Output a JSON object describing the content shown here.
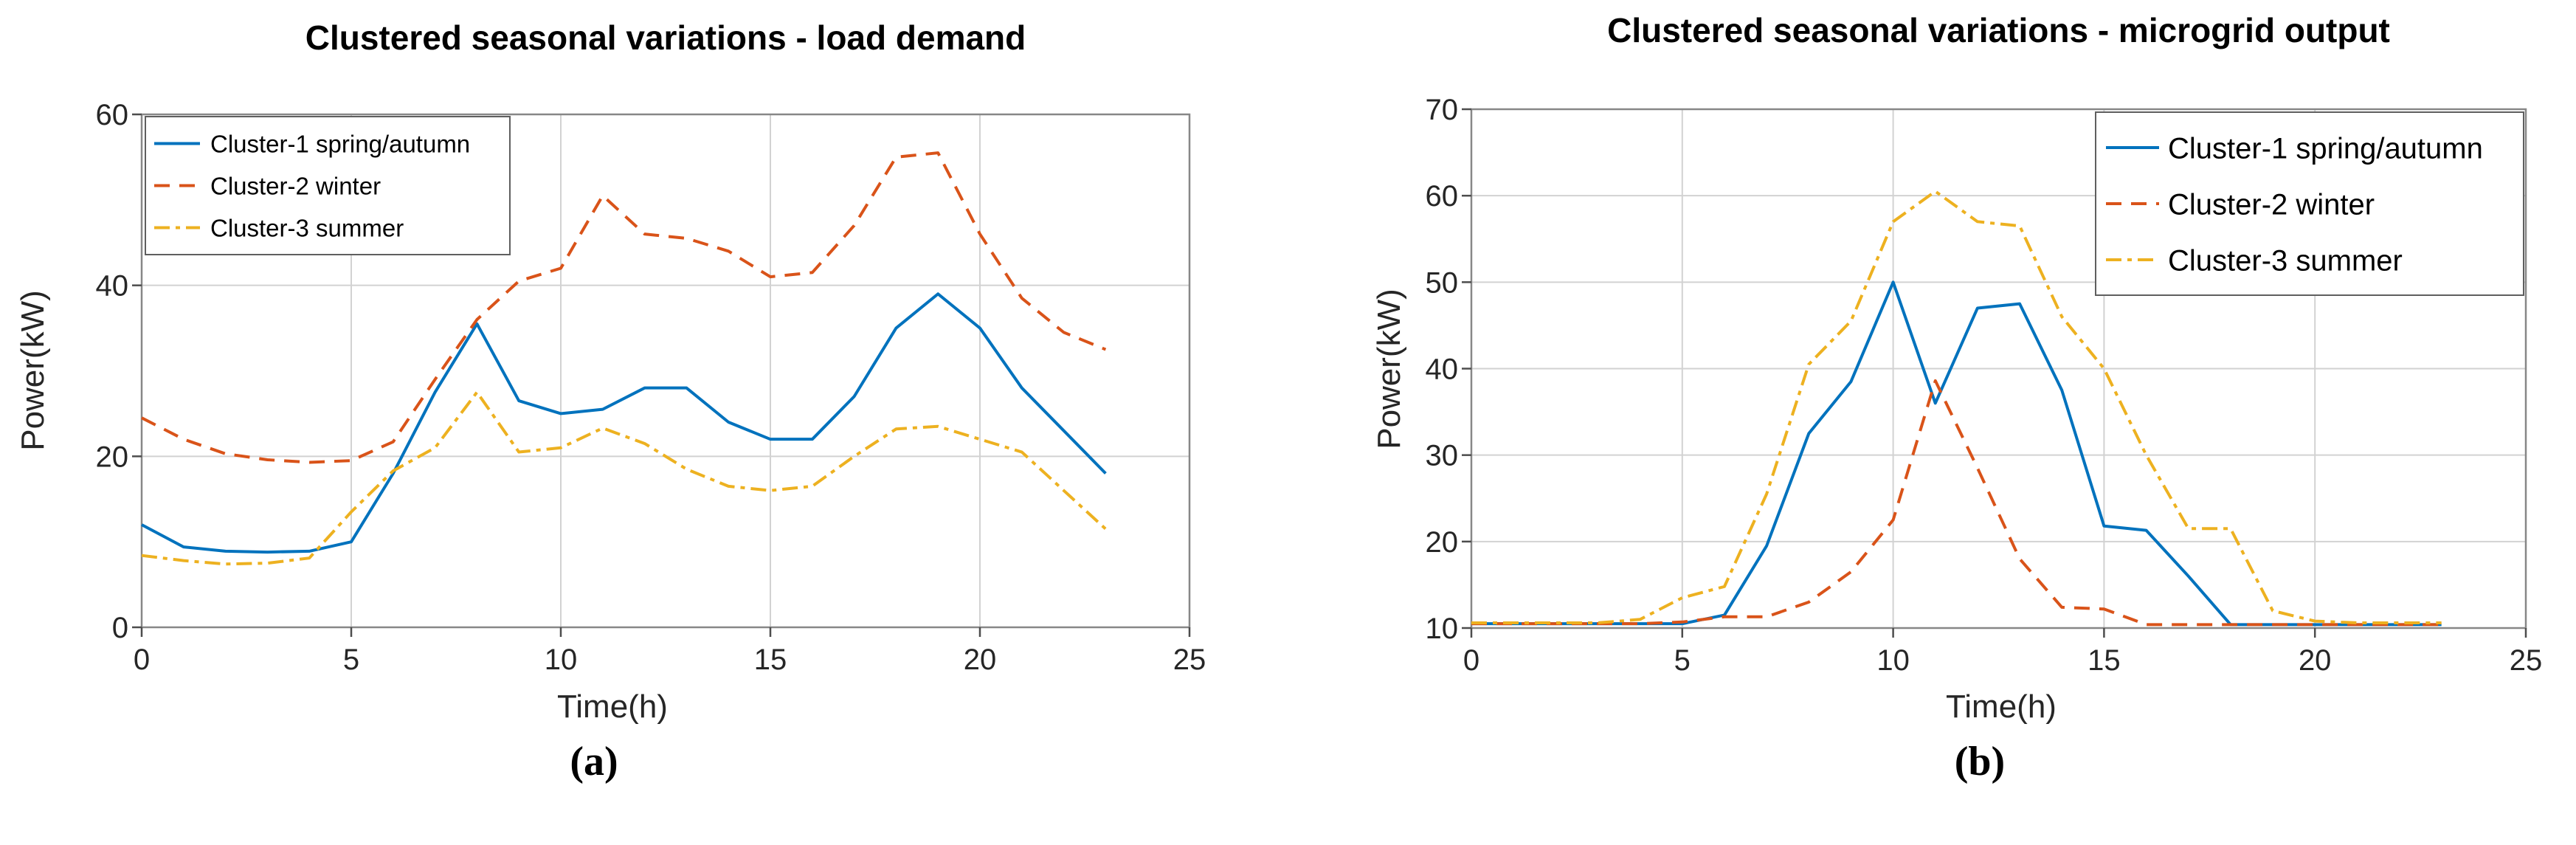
{
  "figure": {
    "background": "#ffffff",
    "text_color": "#262626",
    "grid_color": "#d2d2d2",
    "axis_color": "#878787",
    "legend_border_color": "#5f5f5f"
  },
  "chart_data": [
    {
      "type": "line",
      "title": "Clustered seasonal variations - load demand",
      "xlabel": "Time(h)",
      "ylabel": "Power(kW)",
      "caption": "(a)",
      "xlim": [
        0,
        25
      ],
      "ylim": [
        0,
        60
      ],
      "xticks": [
        0,
        5,
        10,
        15,
        20,
        25
      ],
      "yticks": [
        0,
        20,
        40,
        60
      ],
      "grid": true,
      "legend_position": "top-left",
      "x": [
        0,
        1,
        2,
        3,
        4,
        5,
        6,
        7,
        8,
        9,
        10,
        11,
        12,
        13,
        14,
        15,
        16,
        17,
        18,
        19,
        20,
        21,
        22,
        23
      ],
      "series": [
        {
          "name": "Cluster-1 spring/autumn",
          "color": "#0072BD",
          "style": "solid",
          "values": [
            12,
            9.4,
            8.9,
            8.8,
            8.9,
            10,
            18,
            27.5,
            35.5,
            26.5,
            25,
            25.5,
            28,
            28,
            24,
            22,
            22,
            27,
            35,
            39,
            35,
            28,
            23,
            18
          ]
        },
        {
          "name": "Cluster-2 winter",
          "color": "#D95319",
          "style": "dashed",
          "values": [
            24.5,
            22,
            20.3,
            19.6,
            19.3,
            19.5,
            21.7,
            29,
            36,
            40.5,
            42,
            50.5,
            46,
            45.5,
            44,
            41,
            41.5,
            47,
            55,
            55.5,
            46,
            38.5,
            34.5,
            32.5
          ]
        },
        {
          "name": "Cluster-3 summer",
          "color": "#EDB120",
          "style": "dashdot",
          "values": [
            8.4,
            7.8,
            7.4,
            7.5,
            8.1,
            13.5,
            18.3,
            21,
            27.5,
            20.5,
            21,
            23.3,
            21.5,
            18.5,
            16.5,
            16,
            16.5,
            20,
            23.2,
            23.5,
            22,
            20.5,
            16,
            11.5
          ]
        }
      ]
    },
    {
      "type": "line",
      "title": "Clustered seasonal variations - microgrid output",
      "xlabel": "Time(h)",
      "ylabel": "Power(kW)",
      "caption": "(b)",
      "xlim": [
        0,
        25
      ],
      "ylim": [
        10,
        70
      ],
      "xticks": [
        0,
        5,
        10,
        15,
        20,
        25
      ],
      "yticks": [
        10,
        20,
        30,
        40,
        50,
        60,
        70
      ],
      "grid": true,
      "legend_position": "top-right",
      "x": [
        0,
        1,
        2,
        3,
        4,
        5,
        6,
        7,
        8,
        9,
        10,
        11,
        12,
        13,
        14,
        15,
        16,
        17,
        18,
        19,
        20,
        21,
        22,
        23
      ],
      "series": [
        {
          "name": "Cluster-1 spring/autumn",
          "color": "#0072BD",
          "style": "solid",
          "values": [
            10.5,
            10.5,
            10.5,
            10.5,
            10.5,
            10.5,
            11.5,
            19.5,
            32.5,
            38.5,
            50,
            36,
            47,
            47.5,
            37.5,
            21.8,
            21.3,
            16,
            10.4,
            10.4,
            10.4,
            10.4,
            10.4,
            10.4
          ]
        },
        {
          "name": "Cluster-2 winter",
          "color": "#D95319",
          "style": "dashed",
          "values": [
            10.5,
            10.5,
            10.5,
            10.5,
            10.5,
            10.7,
            11.3,
            11.3,
            13,
            16.5,
            22.5,
            38.6,
            28.5,
            18,
            12.4,
            12.2,
            10.4,
            10.4,
            10.4,
            10.4,
            10.4,
            10.4,
            10.4,
            10.4
          ]
        },
        {
          "name": "Cluster-3 summer",
          "color": "#EDB120",
          "style": "dashdot",
          "values": [
            10.6,
            10.6,
            10.6,
            10.6,
            11,
            13.5,
            14.8,
            25.5,
            40.5,
            45.5,
            57,
            60.5,
            57,
            56.5,
            46,
            40,
            30,
            21.5,
            21.5,
            12,
            10.8,
            10.6,
            10.6,
            10.6
          ]
        }
      ]
    }
  ]
}
